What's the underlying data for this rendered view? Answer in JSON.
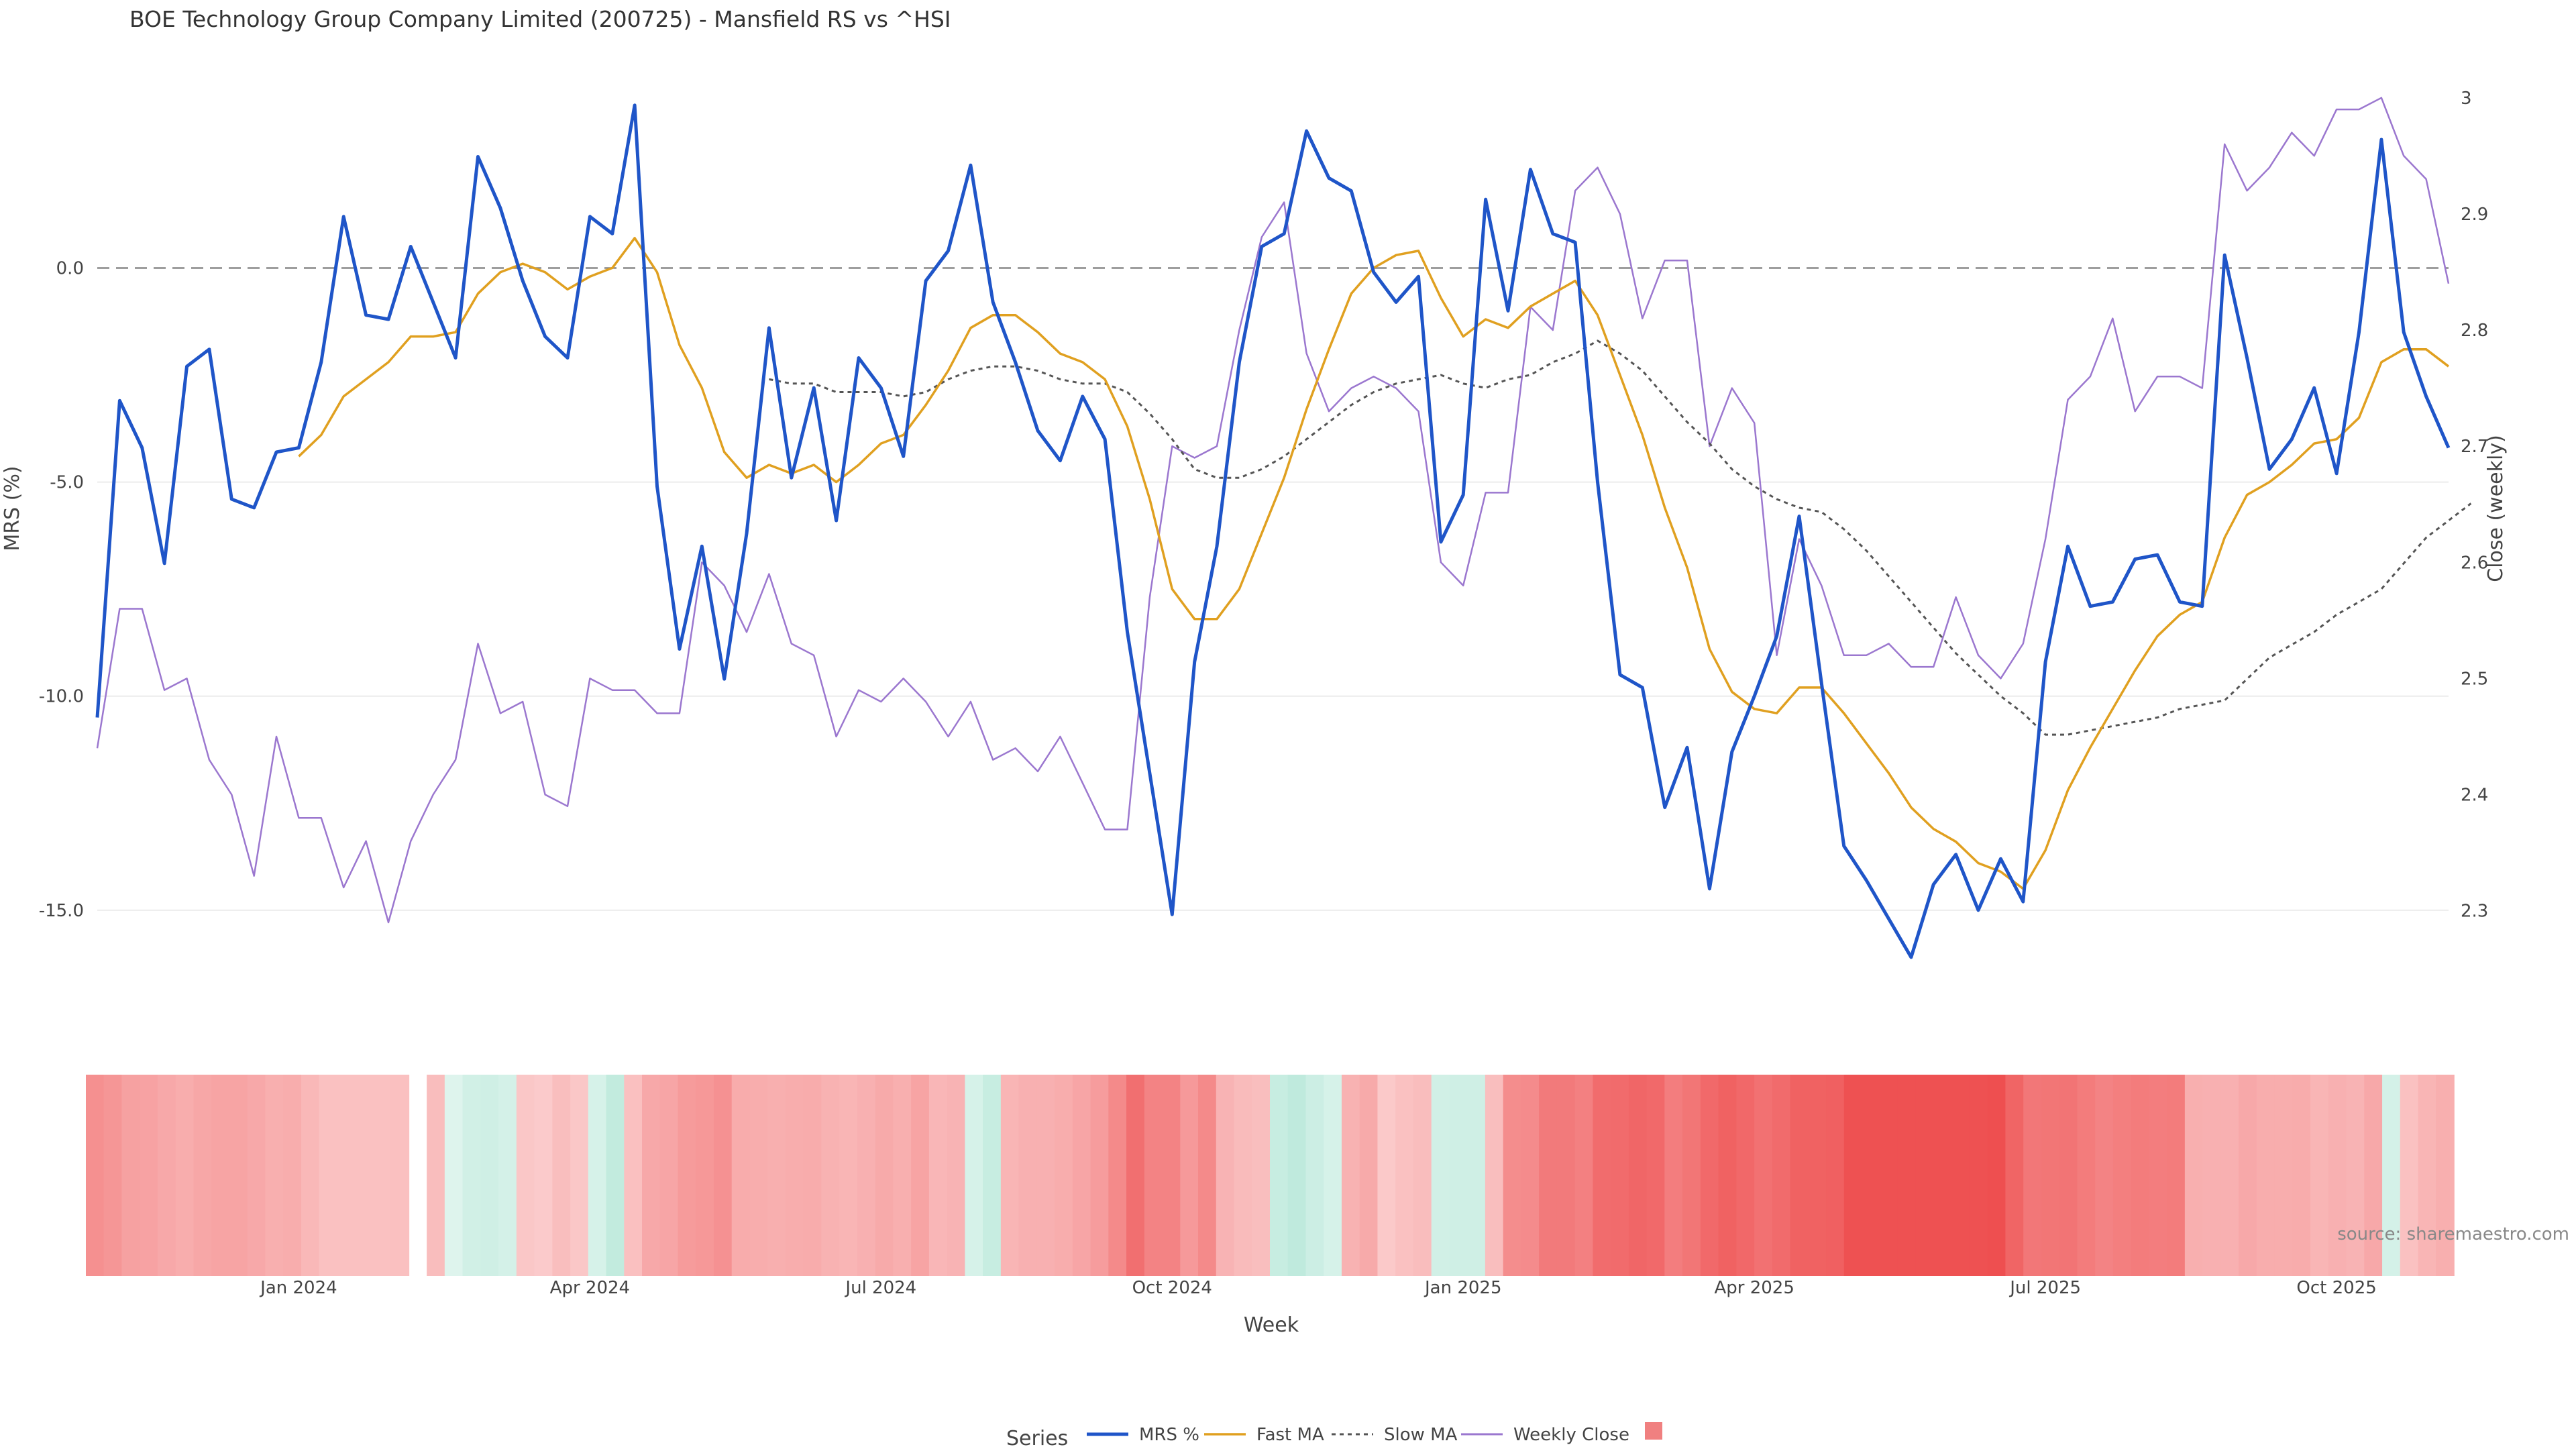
{
  "chart_data": {
    "type": "line",
    "title": "BOE Technology Group Company Limited (200725) - Mansfield RS vs ^HSI",
    "xlabel": "Week",
    "ylabel_left": "MRS (%)",
    "ylabel_right": "Close (weekly)",
    "ylim_left": [
      -17.4,
      4.3
    ],
    "ylim_right": [
      2.212,
      3.012
    ],
    "yticks_left": [
      {
        "v": 0,
        "label": "0.0"
      },
      {
        "v": -5,
        "label": "-5.0"
      },
      {
        "v": -10,
        "label": "-10.0"
      },
      {
        "v": -15,
        "label": "-15.0"
      }
    ],
    "yticks_right": [
      {
        "v": 3.0,
        "label": "3"
      },
      {
        "v": 2.9,
        "label": "2.9"
      },
      {
        "v": 2.8,
        "label": "2.8"
      },
      {
        "v": 2.7,
        "label": "2.7"
      },
      {
        "v": 2.6,
        "label": "2.6"
      },
      {
        "v": 2.5,
        "label": "2.5"
      },
      {
        "v": 2.4,
        "label": "2.4"
      },
      {
        "v": 2.3,
        "label": "2.3"
      }
    ],
    "x_ticks": [
      {
        "i": 9,
        "label": "Jan 2024"
      },
      {
        "i": 22,
        "label": "Apr 2024"
      },
      {
        "i": 35,
        "label": "Jul 2024"
      },
      {
        "i": 48,
        "label": "Oct 2024"
      },
      {
        "i": 61,
        "label": "Jan 2025"
      },
      {
        "i": 74,
        "label": "Apr 2025"
      },
      {
        "i": 87,
        "label": "Jul 2025"
      },
      {
        "i": 100,
        "label": "Oct 2025"
      }
    ],
    "zero_line": 0,
    "series": [
      {
        "name": "MRS %",
        "axis": "left",
        "color": "#1f55c8",
        "style": "solid",
        "values": [
          -10.5,
          -3.1,
          -4.2,
          -6.9,
          -2.3,
          -1.9,
          -5.4,
          -5.6,
          -4.3,
          -4.2,
          -2.2,
          1.2,
          -1.1,
          -1.2,
          0.5,
          -0.8,
          -2.1,
          2.6,
          1.4,
          -0.3,
          -1.6,
          -2.1,
          1.2,
          0.8,
          3.8,
          -5.1,
          -8.9,
          -6.5,
          -9.6,
          -6.2,
          -1.4,
          -4.9,
          -2.8,
          -5.9,
          -2.1,
          -2.8,
          -4.4,
          -0.3,
          0.4,
          2.4,
          -0.8,
          -2.2,
          -3.8,
          -4.5,
          -3.0,
          -4.0,
          -8.5,
          -11.8,
          -15.1,
          -9.2,
          -6.5,
          -2.2,
          0.5,
          0.8,
          3.2,
          2.1,
          1.8,
          -0.1,
          -0.8,
          -0.2,
          -6.4,
          -5.3,
          1.6,
          -1.0,
          2.3,
          0.8,
          0.6,
          -5.0,
          -9.5,
          -9.8,
          -12.6,
          -11.2,
          -14.5,
          -11.3,
          -10.0,
          -8.6,
          -5.8,
          -9.7,
          -13.5,
          -14.3,
          -15.2,
          -16.1,
          -14.4,
          -13.7,
          -15.0,
          -13.8,
          -14.8,
          -9.2,
          -6.5,
          -7.9,
          -7.8,
          -6.8,
          -6.7,
          -7.8,
          -7.9,
          0.3,
          -2.1,
          -4.7,
          -4.0,
          -2.8,
          -4.8,
          -1.5,
          3.0,
          -1.5,
          -3.0,
          -4.2
        ]
      },
      {
        "name": "Fast MA",
        "axis": "left",
        "color": "#e0a020",
        "style": "solid",
        "values": [
          null,
          null,
          null,
          null,
          null,
          null,
          null,
          null,
          null,
          -4.4,
          -3.9,
          -3.0,
          -2.6,
          -2.2,
          -1.6,
          -1.6,
          -1.5,
          -0.6,
          -0.1,
          0.1,
          -0.1,
          -0.5,
          -0.2,
          0.0,
          0.7,
          -0.1,
          -1.8,
          -2.8,
          -4.3,
          -4.9,
          -4.6,
          -4.8,
          -4.6,
          -5.0,
          -4.6,
          -4.1,
          -3.9,
          -3.2,
          -2.4,
          -1.4,
          -1.1,
          -1.1,
          -1.5,
          -2.0,
          -2.2,
          -2.6,
          -3.7,
          -5.4,
          -7.5,
          -8.2,
          -8.2,
          -7.5,
          -6.2,
          -4.9,
          -3.3,
          -1.9,
          -0.6,
          0.0,
          0.3,
          0.4,
          -0.7,
          -1.6,
          -1.2,
          -1.4,
          -0.9,
          -0.6,
          -0.3,
          -1.1,
          -2.5,
          -3.9,
          -5.6,
          -7.0,
          -8.9,
          -9.9,
          -10.3,
          -10.4,
          -9.8,
          -9.8,
          -10.4,
          -11.1,
          -11.8,
          -12.6,
          -13.1,
          -13.4,
          -13.9,
          -14.1,
          -14.5,
          -13.6,
          -12.2,
          -11.2,
          -10.3,
          -9.4,
          -8.6,
          -8.1,
          -7.8,
          -6.3,
          -5.3,
          -5.0,
          -4.6,
          -4.1,
          -4.0,
          -3.5,
          -2.2,
          -1.9,
          -1.9,
          -2.3
        ]
      },
      {
        "name": "Slow MA",
        "axis": "left",
        "color": "#555555",
        "style": "dotted",
        "values": [
          null,
          null,
          null,
          null,
          null,
          null,
          null,
          null,
          null,
          null,
          null,
          null,
          null,
          null,
          null,
          null,
          null,
          null,
          null,
          null,
          null,
          null,
          null,
          null,
          null,
          null,
          null,
          null,
          null,
          null,
          -2.6,
          -2.7,
          -2.7,
          -2.9,
          -2.9,
          -2.9,
          -3.0,
          -2.9,
          -2.6,
          -2.4,
          -2.3,
          -2.3,
          -2.4,
          -2.6,
          -2.7,
          -2.7,
          -2.9,
          -3.4,
          -4.0,
          -4.7,
          -4.9,
          -4.9,
          -4.7,
          -4.4,
          -4.0,
          -3.6,
          -3.2,
          -2.9,
          -2.7,
          -2.6,
          -2.5,
          -2.7,
          -2.8,
          -2.6,
          -2.5,
          -2.2,
          -2.0,
          -1.7,
          -2.0,
          -2.4,
          -3.0,
          -3.6,
          -4.1,
          -4.7,
          -5.1,
          -5.4,
          -5.6,
          -5.7,
          -6.1,
          -6.6,
          -7.2,
          -7.8,
          -8.4,
          -9.0,
          -9.5,
          -10.0,
          -10.4,
          -10.9,
          -10.9,
          -10.8,
          -10.7,
          -10.6,
          -10.5,
          -10.3,
          -10.2,
          -10.1,
          -9.6,
          -9.1,
          -8.8,
          -8.5,
          -8.1,
          -7.8,
          -7.5,
          -6.9,
          -6.3,
          -5.9,
          -5.5
        ]
      },
      {
        "name": "Weekly Close",
        "axis": "right",
        "color": "#9b77cf",
        "style": "solid",
        "values": [
          2.44,
          2.56,
          2.56,
          2.49,
          2.5,
          2.43,
          2.4,
          2.33,
          2.45,
          2.38,
          2.38,
          2.32,
          2.36,
          2.29,
          2.36,
          2.4,
          2.43,
          2.53,
          2.47,
          2.48,
          2.4,
          2.39,
          2.5,
          2.49,
          2.49,
          2.47,
          2.47,
          2.6,
          2.58,
          2.54,
          2.59,
          2.53,
          2.52,
          2.45,
          2.49,
          2.48,
          2.5,
          2.48,
          2.45,
          2.48,
          2.43,
          2.44,
          2.42,
          2.45,
          2.41,
          2.37,
          2.37,
          2.57,
          2.7,
          2.69,
          2.7,
          2.8,
          2.88,
          2.91,
          2.78,
          2.73,
          2.75,
          2.76,
          2.75,
          2.73,
          2.6,
          2.58,
          2.66,
          2.66,
          2.82,
          2.8,
          2.92,
          2.94,
          2.9,
          2.81,
          2.86,
          2.86,
          2.7,
          2.75,
          2.72,
          2.52,
          2.62,
          2.58,
          2.52,
          2.52,
          2.53,
          2.51,
          2.51,
          2.57,
          2.52,
          2.5,
          2.53,
          2.62,
          2.74,
          2.76,
          2.81,
          2.73,
          2.76,
          2.76,
          2.75,
          2.96,
          2.92,
          2.94,
          2.97,
          2.95,
          2.99,
          2.99,
          3.0,
          2.95,
          2.93,
          2.84
        ]
      },
      {
        "name": "",
        "axis": "band",
        "color": "#f08080",
        "values": [
          -5.2,
          -4.8,
          -4.1,
          -4.0,
          -3.6,
          -3.3,
          -3.7,
          -3.9,
          -3.9,
          -3.6,
          -3.2,
          -3.3,
          -2.6,
          -2.0,
          -2.0,
          -2.0,
          -2.0,
          -2.1,
          null,
          -2.3,
          0.3,
          0.8,
          0.9,
          0.7,
          -1.6,
          -1.4,
          -2.2,
          -1.6,
          0.6,
          1.4,
          -2.1,
          -3.6,
          -3.8,
          -4.5,
          -4.7,
          -5.1,
          -3.4,
          -3.3,
          -3.2,
          -3.3,
          -3.4,
          -3.0,
          -2.8,
          -3.1,
          -3.5,
          -3.2,
          -3.9,
          -2.7,
          -2.9,
          0.6,
          1.2,
          -2.8,
          -3.1,
          -3.1,
          -3.3,
          -3.8,
          -4.4,
          -5.6,
          -7.3,
          -6.0,
          -6.0,
          -4.6,
          -5.6,
          -2.9,
          -2.4,
          -2.2,
          1.2,
          1.5,
          1.0,
          0.6,
          -3.0,
          -3.5,
          -1.5,
          -2.0,
          -2.3,
          0.8,
          0.9,
          0.9,
          -2.2,
          -5.4,
          -5.5,
          -6.6,
          -6.6,
          -6.2,
          -7.5,
          -7.6,
          -7.9,
          -7.7,
          -6.4,
          -6.9,
          -7.7,
          -8.2,
          -7.8,
          -7.2,
          -7.6,
          -8.2,
          -8.2,
          -8.3,
          -9.3,
          -9.3,
          -9.3,
          -9.3,
          -9.3,
          -9.3,
          -9.3,
          -9.3,
          -9.4,
          -8.0,
          -6.8,
          -6.9,
          -7.0,
          -6.5,
          -6.0,
          -6.3,
          -6.5,
          -6.4,
          -6.5,
          -3.2,
          -3.1,
          -3.1,
          -3.6,
          -3.3,
          -3.3,
          -3.4,
          -2.8,
          -3.1,
          -2.9,
          -3.6,
          0.7,
          -2.0,
          -2.8,
          -3.2
        ]
      }
    ],
    "legend": {
      "title": "Series",
      "position": "bottom-center",
      "items": [
        "MRS %",
        "Fast MA",
        "Slow MA",
        "Weekly Close",
        ""
      ]
    },
    "source_note": "source: sharemaestro.com"
  }
}
